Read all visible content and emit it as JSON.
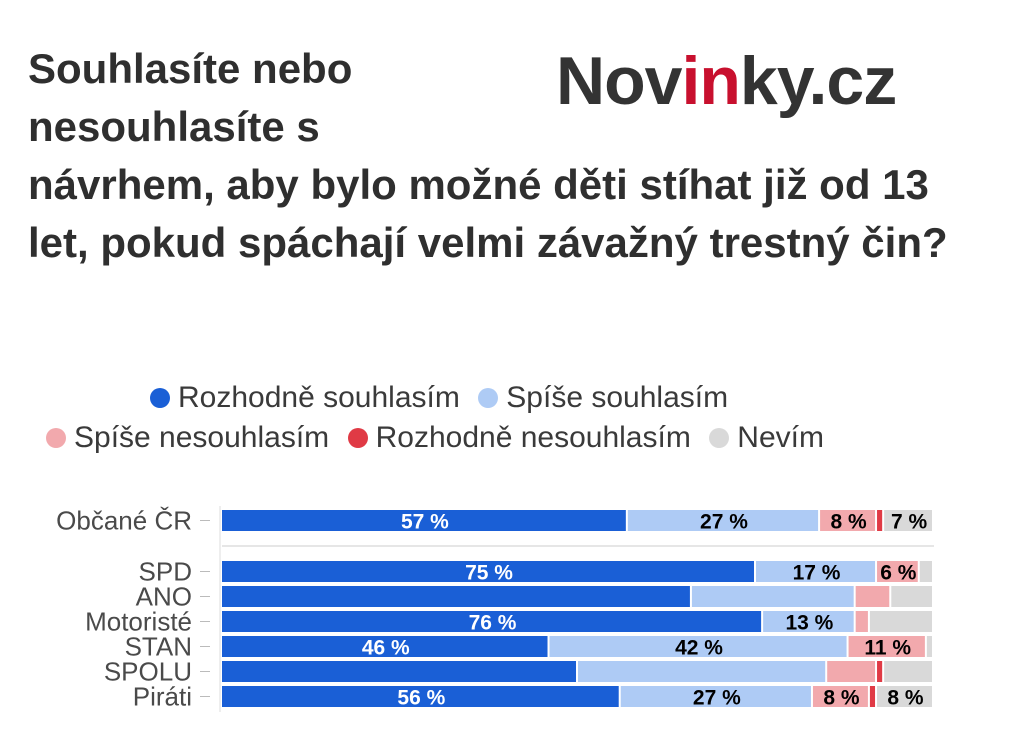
{
  "title_line1": "Souhlasíte nebo",
  "title_line2": "nesouhlasíte s",
  "title_rest": "návrhem, aby bylo možné děti stíhat již od 13 let, pokud spáchají velmi závažný trestný čin?",
  "brand": {
    "part1": "Nov",
    "part2": "in",
    "part3": "ky.cz",
    "color_dark": "#333333",
    "color_accent": "#c8102e"
  },
  "legend": [
    {
      "name": "Rozhodně souhlasím",
      "color": "#1a5fd6"
    },
    {
      "name": "Spíše souhlasím",
      "color": "#aecbf5"
    },
    {
      "name": "Spíše nesouhlasím",
      "color": "#f2a9ad"
    },
    {
      "name": "Rozhodně nesouhlasím",
      "color": "#e03a45"
    },
    {
      "name": "Nevím",
      "color": "#d9d9d9"
    }
  ],
  "chart_data": {
    "type": "bar",
    "orientation": "horizontal",
    "stacked": true,
    "normalized": true,
    "categories": [
      "Občané ČR",
      "SPD",
      "ANO",
      "Motoristé",
      "STAN",
      "SPOLU",
      "Piráti"
    ],
    "series": [
      {
        "name": "Rozhodně souhlasím",
        "values": [
          57,
          75,
          66,
          76,
          46,
          50,
          56
        ],
        "labels": [
          "57 %",
          "75 %",
          "",
          "76 %",
          "46 %",
          "",
          "56 %"
        ]
      },
      {
        "name": "Spíše souhlasím",
        "values": [
          27,
          17,
          23,
          13,
          42,
          35,
          27
        ],
        "labels": [
          "27 %",
          "17 %",
          "",
          "13 %",
          "42 %",
          "",
          "27 %"
        ]
      },
      {
        "name": "Spíše nesouhlasím",
        "values": [
          8,
          6,
          5,
          2,
          11,
          7,
          8
        ],
        "labels": [
          "8 %",
          "6 %",
          "",
          "",
          "11 %",
          "",
          "8 %"
        ]
      },
      {
        "name": "Rozhodně nesouhlasím",
        "values": [
          1,
          0,
          0,
          0,
          0,
          1,
          1
        ],
        "labels": [
          "",
          "",
          "",
          "",
          "",
          "",
          ""
        ]
      },
      {
        "name": "Nevím",
        "values": [
          7,
          2,
          6,
          9,
          1,
          7,
          8
        ],
        "labels": [
          "7 %",
          "",
          "",
          "",
          "",
          "",
          "8 %"
        ]
      }
    ],
    "xlim": [
      0,
      100
    ],
    "grid": false,
    "legend_position": "top"
  }
}
